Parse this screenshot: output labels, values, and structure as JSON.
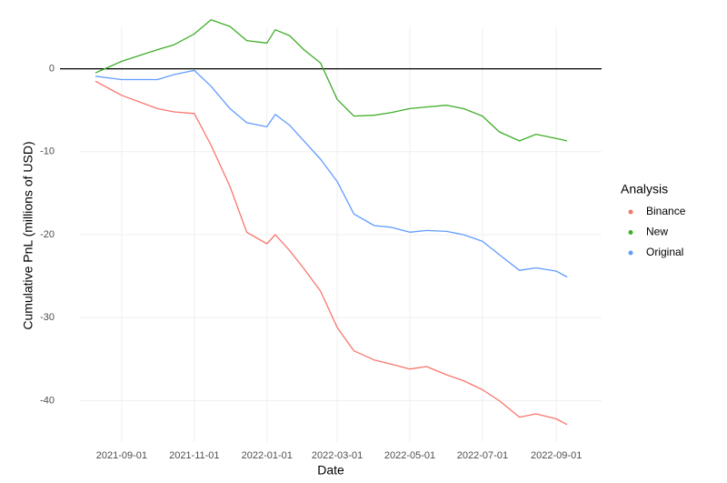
{
  "chart_data": {
    "type": "line",
    "x_label": "Date",
    "y_label": "Cumulative PnL (millions of USD)",
    "legend_title": "Analysis",
    "legend_position": "right",
    "grid": true,
    "hline": 0,
    "x": [
      "2021-08-10",
      "2021-09-01",
      "2021-10-01",
      "2021-10-15",
      "2021-11-01",
      "2021-11-15",
      "2021-12-01",
      "2021-12-15",
      "2022-01-01",
      "2022-01-08",
      "2022-01-20",
      "2022-02-01",
      "2022-02-15",
      "2022-03-01",
      "2022-03-15",
      "2022-04-01",
      "2022-04-15",
      "2022-05-01",
      "2022-05-15",
      "2022-06-01",
      "2022-06-15",
      "2022-07-01",
      "2022-07-15",
      "2022-08-01",
      "2022-08-15",
      "2022-09-01",
      "2022-09-10"
    ],
    "xlim": [
      "2021-07-28",
      "2022-10-09"
    ],
    "xticks": [
      "2021-09-01",
      "2021-11-01",
      "2022-01-01",
      "2022-03-01",
      "2022-05-01",
      "2022-07-01",
      "2022-09-01"
    ],
    "ylim": [
      -45,
      5
    ],
    "yticks": [
      -40,
      -30,
      -20,
      -10,
      0
    ],
    "series": [
      {
        "name": "Binance",
        "color": "#F8766D",
        "values": [
          -1.5,
          -3.2,
          -4.8,
          -5.2,
          -5.4,
          -9.2,
          -14.2,
          -19.7,
          -21.1,
          -20.0,
          -21.9,
          -24.1,
          -26.8,
          -31.2,
          -34.0,
          -35.1,
          -35.6,
          -36.2,
          -35.9,
          -36.9,
          -37.6,
          -38.7,
          -40.0,
          -42.0,
          -41.6,
          -42.2,
          -42.9
        ]
      },
      {
        "name": "New",
        "color": "#3fae2a",
        "values": [
          -0.5,
          0.9,
          2.3,
          2.9,
          4.2,
          5.9,
          5.1,
          3.4,
          3.1,
          4.7,
          4.0,
          2.3,
          0.7,
          -3.7,
          -5.7,
          -5.6,
          -5.3,
          -4.8,
          -4.6,
          -4.4,
          -4.8,
          -5.7,
          -7.6,
          -8.7,
          -7.9,
          -8.4,
          -8.7
        ]
      },
      {
        "name": "Original",
        "color": "#619CFF",
        "values": [
          -0.9,
          -1.3,
          -1.3,
          -0.7,
          -0.2,
          -2.1,
          -4.8,
          -6.5,
          -7.0,
          -5.5,
          -6.8,
          -8.7,
          -10.9,
          -13.6,
          -17.5,
          -18.9,
          -19.1,
          -19.7,
          -19.5,
          -19.6,
          -20.0,
          -20.8,
          -22.4,
          -24.3,
          -24.0,
          -24.4,
          -25.1
        ]
      }
    ]
  }
}
